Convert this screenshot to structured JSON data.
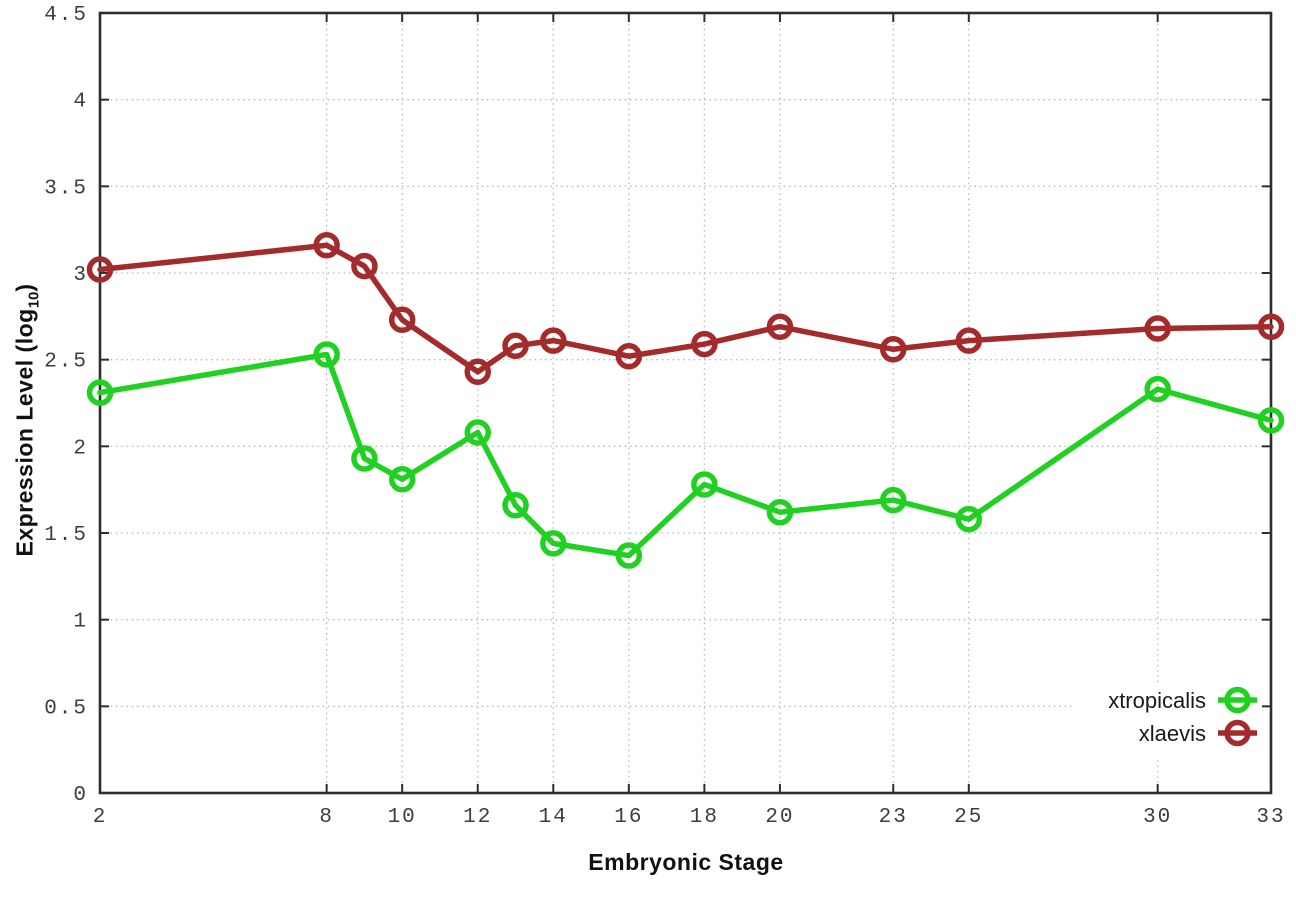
{
  "chart_data": {
    "type": "line",
    "title": "",
    "xlabel": "Embryonic Stage",
    "ylabel": "Expression Level (log10)",
    "ylabel_parts": {
      "main": "Expression Level (log",
      "sub": "10",
      "end": ")"
    },
    "xlim": [
      2,
      33
    ],
    "ylim": [
      0,
      4.5
    ],
    "x_ticks": [
      2,
      8,
      10,
      12,
      14,
      16,
      18,
      20,
      23,
      25,
      30,
      33
    ],
    "x_tick_labels": [
      "2",
      "8",
      "10",
      "12",
      "14",
      "16",
      "18",
      "20",
      "23",
      "25",
      "30",
      "33"
    ],
    "y_ticks": [
      0,
      0.5,
      1,
      1.5,
      2,
      2.5,
      3,
      3.5,
      4,
      4.5
    ],
    "y_tick_labels": [
      "0",
      "0.5",
      "1",
      "1.5",
      "2",
      "2.5",
      "3",
      "3.5",
      "4",
      "4.5"
    ],
    "grid": true,
    "legend_position": "bottom-right-inside",
    "marker": "open-circle",
    "x": [
      2,
      8,
      9,
      10,
      12,
      13,
      14,
      16,
      18,
      20,
      23,
      25,
      30,
      33
    ],
    "series": [
      {
        "name": "xtropicalis",
        "color": "#21d121",
        "values": [
          2.31,
          2.53,
          1.93,
          1.81,
          2.08,
          1.66,
          1.44,
          1.37,
          1.78,
          1.62,
          1.69,
          1.58,
          2.33,
          2.15
        ]
      },
      {
        "name": "xlaevis",
        "color": "#a32b2b",
        "values": [
          3.02,
          3.16,
          3.04,
          2.73,
          2.43,
          2.58,
          2.61,
          2.52,
          2.59,
          2.69,
          2.56,
          2.61,
          2.68,
          2.69
        ]
      }
    ],
    "colors": {
      "axis": "#2e2e2e",
      "grid": "#b8b8b8",
      "background": "#ffffff"
    }
  }
}
